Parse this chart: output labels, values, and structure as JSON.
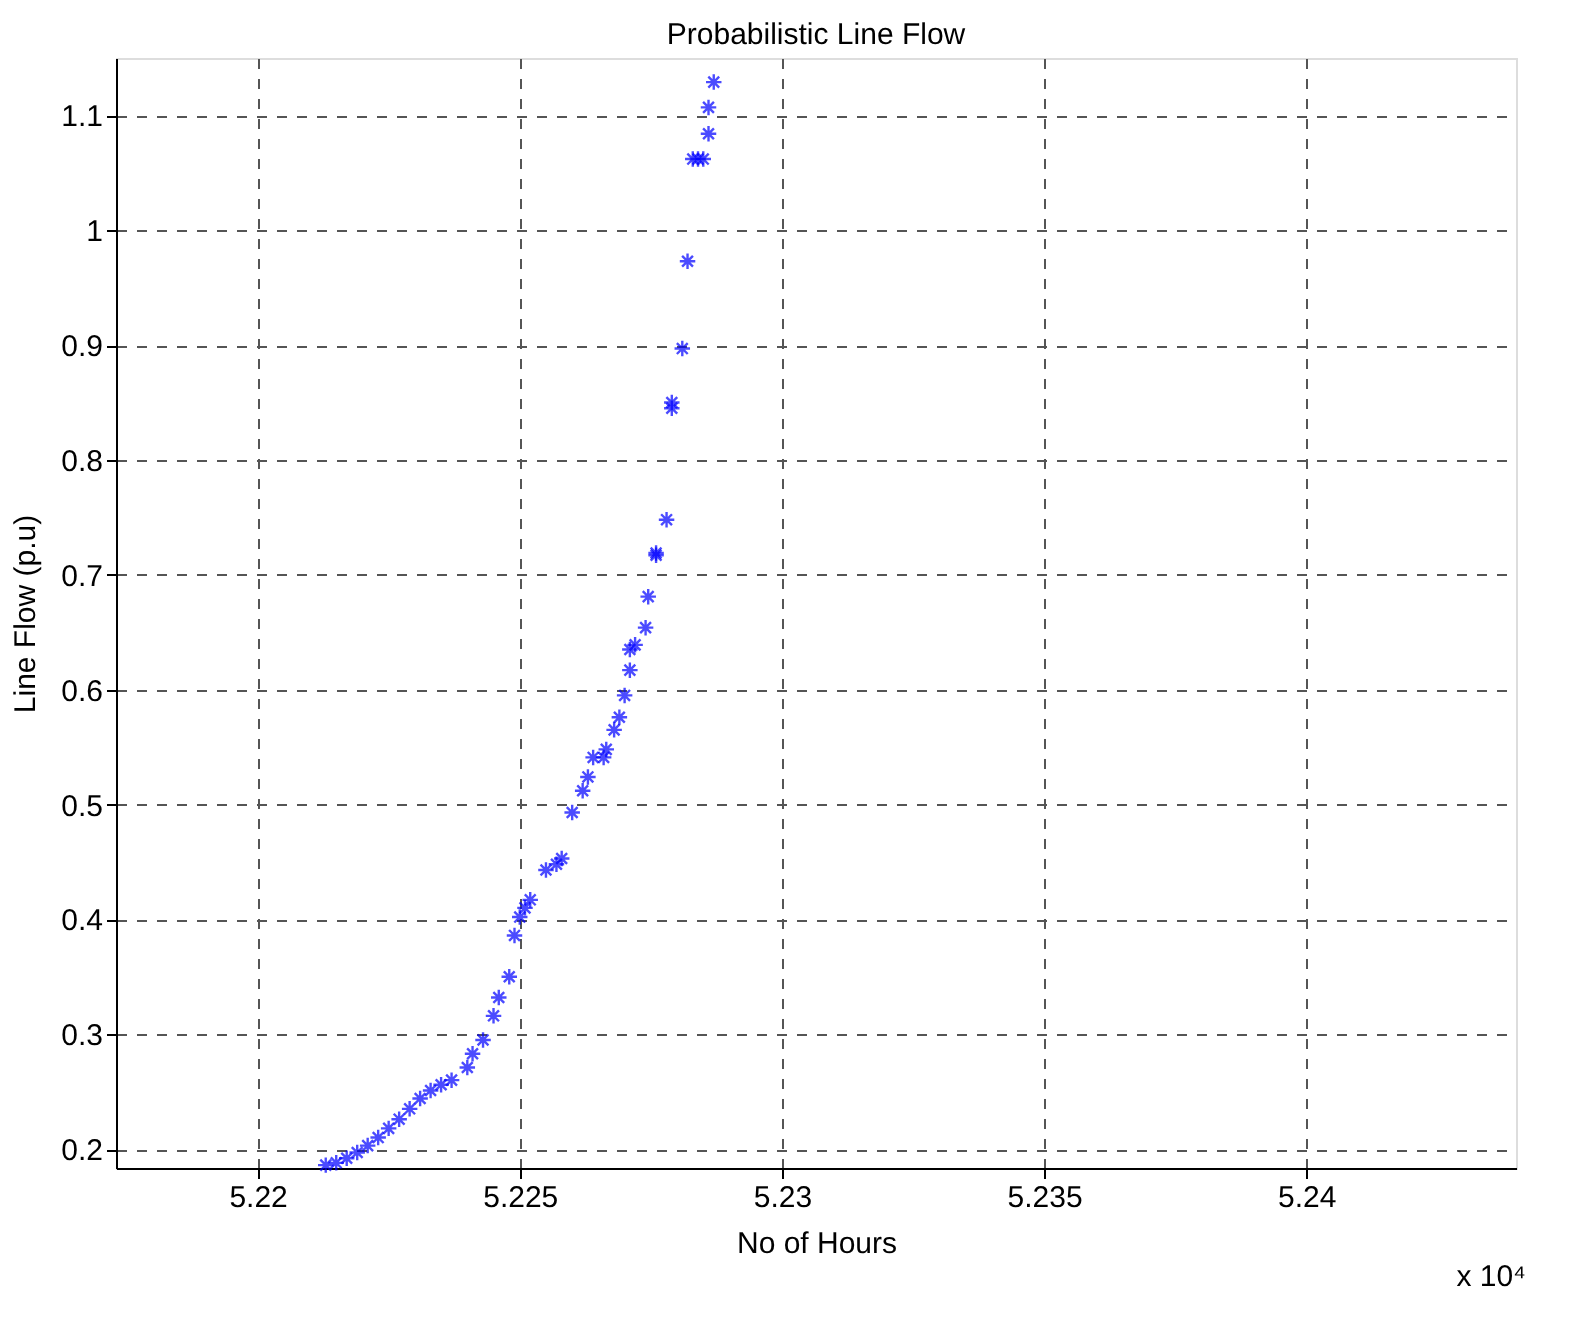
{
  "chart_data": {
    "type": "scatter",
    "title": "Probabilistic Line Flow",
    "xlabel": "No of Hours",
    "ylabel": "Line Flow (p.u)",
    "annotations": [
      "x 10⁴"
    ],
    "x": [
      5.2213,
      5.2215,
      5.2217,
      5.2219,
      5.2221,
      5.2223,
      5.2225,
      5.2227,
      5.2229,
      5.2231,
      5.2233,
      5.2235,
      5.2237,
      5.224,
      5.2241,
      5.2243,
      5.2245,
      5.2246,
      5.2248,
      5.2249,
      5.225,
      5.2251,
      5.2252,
      5.2255,
      5.2257,
      5.2258,
      5.226,
      5.2262,
      5.2263,
      5.2264,
      5.2266,
      5.22665,
      5.2268,
      5.2269,
      5.227,
      5.2271,
      5.2271,
      5.2272,
      5.2274,
      5.22745,
      5.2276,
      5.2276,
      5.2278,
      5.2279,
      5.2279,
      5.2281,
      5.2282,
      5.2283,
      5.2284,
      5.2285,
      5.2286,
      5.2286,
      5.2287
    ],
    "series": [
      {
        "color": "#0000ff",
        "values": [
          0.186,
          0.188,
          0.192,
          0.197,
          0.203,
          0.21,
          0.218,
          0.226,
          0.235,
          0.244,
          0.251,
          0.256,
          0.26,
          0.271,
          0.283,
          0.295,
          0.316,
          0.332,
          0.35,
          0.386,
          0.402,
          0.41,
          0.417,
          0.443,
          0.448,
          0.453,
          0.493,
          0.512,
          0.524,
          0.541,
          0.541,
          0.548,
          0.565,
          0.576,
          0.595,
          0.617,
          0.635,
          0.639,
          0.654,
          0.681,
          0.717,
          0.719,
          0.748,
          0.845,
          0.85,
          0.897,
          0.973,
          1.062,
          1.062,
          1.062,
          1.084,
          1.107,
          1.129
        ]
      }
    ],
    "xlim": [
      5.2173,
      5.244
    ],
    "xticks": [
      5.22,
      5.225,
      5.23,
      5.235,
      5.24
    ],
    "ylim": [
      0.1835,
      1.15
    ],
    "yticks": [
      0.2,
      0.3,
      0.4,
      0.5,
      0.6,
      0.7,
      0.8,
      0.9,
      1,
      1.1
    ],
    "grid": true,
    "marker": "cross"
  }
}
